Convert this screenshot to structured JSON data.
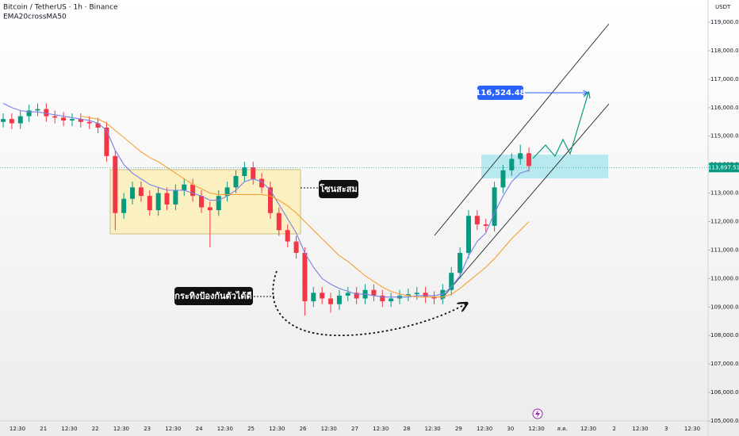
{
  "chart_data": {
    "type": "candlestick",
    "title": "Bitcoin / TetherUS · 1h · Binance",
    "subtitle": "EMA20crossMA50",
    "y_unit": "USDT",
    "ylim": [
      105000,
      119000
    ],
    "yticks": [
      {
        "value": 105000,
        "label": "105,000.00"
      },
      {
        "value": 106000,
        "label": "106,000.00"
      },
      {
        "value": 107000,
        "label": "107,000.00"
      },
      {
        "value": 108000,
        "label": "108,000.00"
      },
      {
        "value": 109000,
        "label": "109,000.00"
      },
      {
        "value": 110000,
        "label": "110,000.00"
      },
      {
        "value": 111000,
        "label": "111,000.00"
      },
      {
        "value": 112000,
        "label": "112,000.00"
      },
      {
        "value": 113000,
        "label": "113,000.00"
      },
      {
        "value": 114000,
        "label": "114,000.00"
      },
      {
        "value": 115000,
        "label": "115,000.00"
      },
      {
        "value": 116000,
        "label": "116,000.00"
      },
      {
        "value": 117000,
        "label": "117,000.00"
      },
      {
        "value": 118000,
        "label": "118,000.00"
      },
      {
        "value": 119000,
        "label": "119,000.00"
      }
    ],
    "x_labels": [
      "12:30",
      "21",
      "12:30",
      "22",
      "12:30",
      "23",
      "12:30",
      "24",
      "12:30",
      "25",
      "12:30",
      "26",
      "12:30",
      "27",
      "12:30",
      "28",
      "12:30",
      "29",
      "12:30",
      "30",
      "12:30",
      "ส.ค.",
      "12:30",
      "2",
      "12:30",
      "3",
      "12:30"
    ],
    "up_color": "#089981",
    "down_color": "#f23645",
    "open": [
      115500,
      115600,
      115450,
      115700,
      115900,
      115950,
      115700,
      115650,
      115550,
      115600,
      115500,
      115450,
      115300,
      114300,
      112300,
      112800,
      113200,
      112900,
      112400,
      113000,
      112600,
      113100,
      113300,
      112900,
      112500,
      112400,
      112900,
      113200,
      113600,
      113900,
      113500,
      113200,
      112300,
      111700,
      111300,
      110900,
      109200,
      109500,
      109300,
      109100,
      109400,
      109500,
      109300,
      109600,
      109400,
      109200,
      109300,
      109400,
      109450,
      109500,
      109350,
      109300,
      109600,
      110200,
      110900,
      112200,
      111900,
      111850,
      113200,
      113800,
      114200,
      114400
    ],
    "high": [
      115800,
      115800,
      115900,
      116100,
      116150,
      116150,
      115900,
      115850,
      115800,
      115800,
      115700,
      115650,
      115500,
      114500,
      113000,
      113400,
      113400,
      113100,
      113200,
      113200,
      113300,
      113500,
      113500,
      113100,
      112700,
      113100,
      113400,
      113800,
      114100,
      114100,
      113700,
      113400,
      112500,
      111900,
      111500,
      111100,
      109700,
      109700,
      109500,
      109600,
      109700,
      109700,
      109800,
      109800,
      109600,
      109500,
      109600,
      109650,
      109700,
      109700,
      109550,
      109800,
      110400,
      111100,
      112400,
      112400,
      112100,
      113400,
      114000,
      114400,
      114700,
      114600
    ],
    "low": [
      115300,
      115250,
      115250,
      115500,
      115700,
      115500,
      115450,
      115350,
      115350,
      115300,
      115250,
      115100,
      114100,
      111700,
      112100,
      112600,
      112700,
      112200,
      112200,
      112400,
      112400,
      112900,
      112700,
      112300,
      111100,
      112200,
      112700,
      113000,
      113400,
      113300,
      113000,
      112100,
      111500,
      111100,
      110700,
      108700,
      109000,
      109100,
      108800,
      108900,
      109200,
      109100,
      109100,
      109200,
      109000,
      109000,
      109100,
      109200,
      109250,
      109150,
      109100,
      109100,
      109400,
      110000,
      110700,
      111700,
      111650,
      111650,
      113000,
      113600,
      114000,
      113750
    ],
    "close": [
      115600,
      115450,
      115700,
      115900,
      115950,
      115700,
      115650,
      115550,
      115600,
      115500,
      115450,
      115300,
      114300,
      112300,
      112800,
      113200,
      112900,
      112400,
      113000,
      112600,
      113100,
      113300,
      112900,
      112500,
      112400,
      112900,
      113200,
      113600,
      113900,
      113500,
      113200,
      112300,
      111700,
      111300,
      110900,
      109200,
      109500,
      109300,
      109100,
      109400,
      109500,
      109300,
      109600,
      109400,
      109200,
      109300,
      109400,
      109450,
      109500,
      109350,
      109300,
      109600,
      110200,
      110900,
      112200,
      111900,
      111850,
      113200,
      113800,
      114200,
      114400,
      113950
    ],
    "lines": [
      {
        "color": "#7b7fe8",
        "values": [
          116150,
          116000,
          115900,
          115850,
          115850,
          115800,
          115750,
          115700,
          115650,
          115600,
          115550,
          115450,
          115200,
          114500,
          114000,
          113700,
          113500,
          113300,
          113200,
          113100,
          113100,
          113100,
          113000,
          112900,
          112750,
          112750,
          112900,
          113100,
          113400,
          113500,
          113400,
          113100,
          112600,
          112100,
          111600,
          110900,
          110400,
          110000,
          109800,
          109650,
          109550,
          109450,
          109450,
          109400,
          109350,
          109350,
          109350,
          109350,
          109400,
          109400,
          109400,
          109450,
          109700,
          110100,
          110800,
          111300,
          111600,
          112300,
          112900,
          113400,
          113700,
          113800
        ]
      },
      {
        "color": "#f5a032",
        "values": [
          null,
          null,
          null,
          null,
          null,
          null,
          null,
          null,
          null,
          115700,
          115650,
          115600,
          115450,
          115200,
          114950,
          114700,
          114450,
          114250,
          114100,
          113900,
          113700,
          113500,
          113300,
          113150,
          113000,
          112950,
          112950,
          112950,
          112950,
          112950,
          112950,
          112900,
          112750,
          112550,
          112300,
          112000,
          111700,
          111400,
          111100,
          110800,
          110600,
          110350,
          110100,
          109900,
          109700,
          109550,
          109450,
          109400,
          109350,
          109350,
          109350,
          109350,
          109450,
          109650,
          109900,
          110150,
          110400,
          110700,
          111050,
          111400,
          111700,
          112000
        ]
      }
    ],
    "last_price": {
      "value": 113897.51,
      "label": "113,897.51"
    },
    "target": {
      "value": 116524.48,
      "label": "116,524.48"
    },
    "annotations": [
      "โซนสะสม",
      "กระทิงป้องกันตัวได้ดี"
    ]
  }
}
